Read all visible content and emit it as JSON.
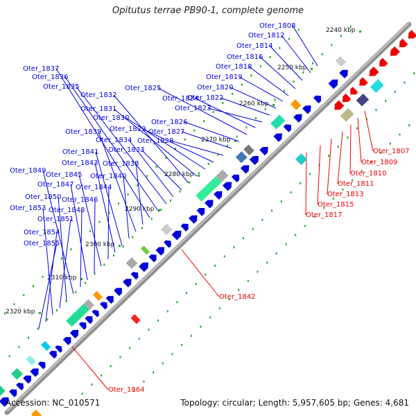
{
  "header": {
    "title": "Opitutus terrae PB90-1, complete genome"
  },
  "footer": {
    "accession": "Accession: NC_010571",
    "summary": "Topology: circular; Length: 5,957,605 bp; Genes: 4,681"
  },
  "colors": {
    "forward": "#0000dd",
    "reverse": "#ee0000",
    "backbone": "#808080",
    "dots": "#22aa22"
  },
  "ticks": [
    "2240 kbp",
    "2250 kbp",
    "2260 kbp",
    "2270 kbp",
    "2280 kbp",
    "2290 kbp",
    "2300 kbp",
    "2310 kbp",
    "2320 kbp"
  ],
  "labels_forward": [
    "Oter_1808",
    "Oter_1812",
    "Oter_1814",
    "Oter_1816",
    "Oter_1818",
    "Oter_1819",
    "Oter_1820",
    "Oter_1822",
    "Oter_1823",
    "Oter_1824",
    "Oter_1825",
    "Oter_1826",
    "Oter_1827",
    "Oter_1828",
    "Oter_1829",
    "Oter_1830",
    "Oter_1831",
    "Oter_1832",
    "Oter_1833",
    "Oter_1834",
    "Oter_1835",
    "Oter_1836",
    "Oter_1837",
    "Oter_1838",
    "Oter_1839",
    "Oter_1840",
    "Oter_1841",
    "Oter_1843",
    "Oter_1844",
    "Oter_1845",
    "Oter_1846",
    "Oter_1847",
    "Oter_1848",
    "Oter_1849",
    "Oter_1850",
    "Oter_1851",
    "Oter_1853",
    "Oter_1854",
    "Oter_1855"
  ],
  "labels_reverse": [
    "Oter_1807",
    "Oter_1809",
    "Oter_1810",
    "Oter_1811",
    "Oter_1813",
    "Oter_1815",
    "Oter_1817",
    "Oter_1842",
    "Oter_1864"
  ]
}
